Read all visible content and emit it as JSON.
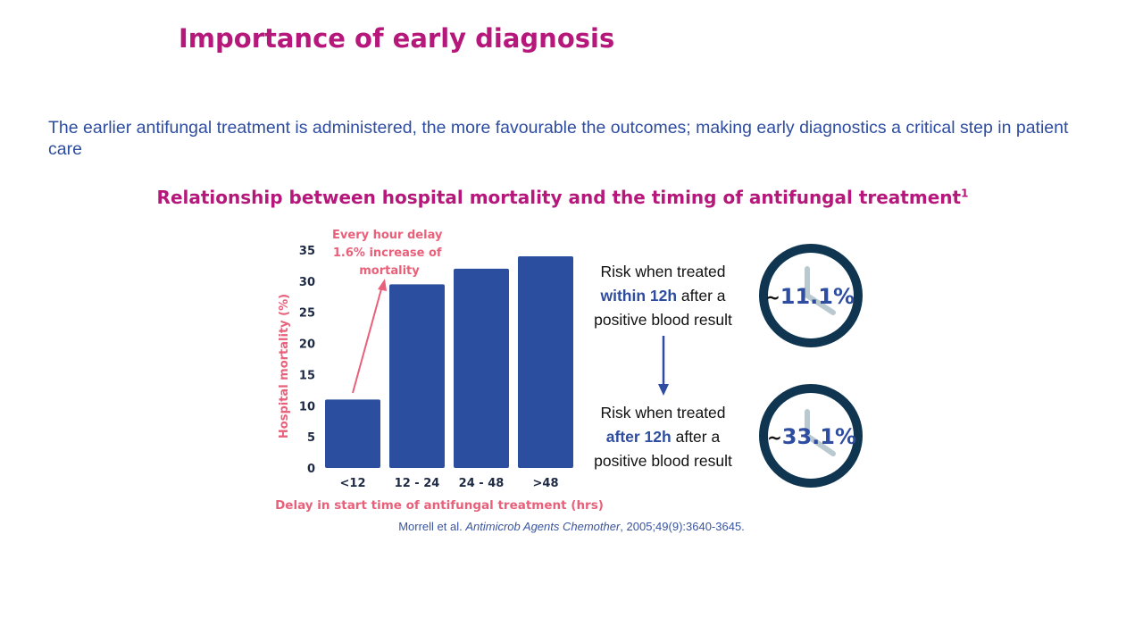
{
  "page": {
    "title": "Importance of early diagnosis",
    "intro": "The earlier antifungal treatment is administered, the more favourable the outcomes; making early diagnostics a critical step in patient care"
  },
  "chart_title": {
    "text": "Relationship  between hospital mortality and the timing of antifungal treatment",
    "superscript": "1"
  },
  "chart_data": {
    "type": "bar",
    "categories": [
      "<12",
      "12 - 24",
      "24 - 48",
      ">48"
    ],
    "values": [
      11,
      29.5,
      32,
      34
    ],
    "xlabel": "Delay in start time of antifungal treatment (hrs)",
    "ylabel": "Hospital mortality (%)",
    "ylim": [
      0,
      35
    ],
    "yticks": [
      0,
      5,
      10,
      15,
      20,
      25,
      30,
      35
    ],
    "grid": false,
    "annotation": "Every hour delay 1.6% increase of mortality",
    "bar_color": "#2b4f9e",
    "label_color": "#e8607a"
  },
  "risk": {
    "within": {
      "prefix": "Risk when treated",
      "highlight": "within 12h",
      "suffix": "after a",
      "line3": "positive blood result",
      "value_tilde": "~",
      "value": "11.1%"
    },
    "after": {
      "prefix": "Risk when treated",
      "highlight": "after 12h",
      "suffix": "after a",
      "line3": "positive blood result",
      "value_tilde": "~",
      "value": "33.1%"
    },
    "icons": {
      "arrow": "arrow-down-icon",
      "clock": "clock-icon"
    }
  },
  "reference": {
    "authors": "Morrell et al.",
    "journal": "Antimicrob Agents Chemother",
    "details": ", 2005;49(9):3640-3645."
  },
  "colors": {
    "accent_magenta": "#b5177a",
    "text_blue": "#2e4da0",
    "clock_ring": "#0f3550",
    "clock_hand": "#b9c9cf"
  }
}
